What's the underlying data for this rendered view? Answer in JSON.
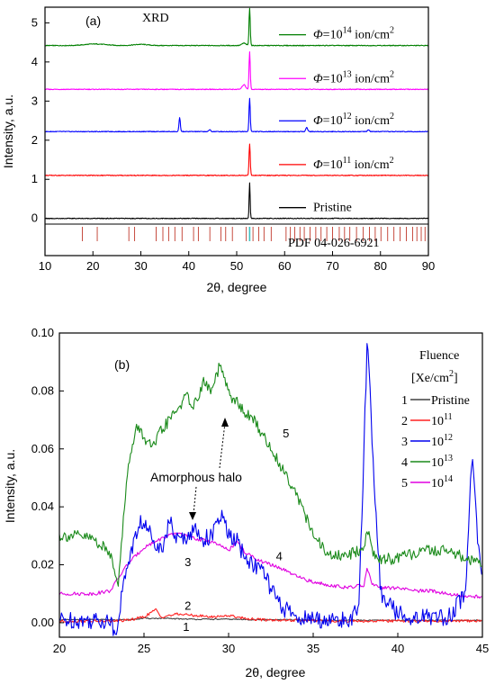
{
  "chart_data": [
    {
      "type": "line",
      "panel_label": "(a)",
      "title": "XRD",
      "xlabel": "2θ, degree",
      "ylabel": "Intensity, a.u.",
      "xlim": [
        10,
        90
      ],
      "ylim": [
        -0.95,
        5.4
      ],
      "xticks": [
        10,
        20,
        30,
        40,
        50,
        60,
        70,
        80,
        90
      ],
      "yticks": [
        0,
        1,
        2,
        3,
        4,
        5
      ],
      "series": [
        {
          "legend_prefix": "Φ=10",
          "legend_exp": "14",
          "legend_suffix": " ion/cm",
          "legend_sq": "2",
          "color": "#007f00",
          "offset": 4.42,
          "peaks": [
            [
              52.7,
              0.95,
              0.18
            ],
            [
              51.5,
              0.06,
              0.6
            ],
            [
              20.5,
              0.04,
              3
            ],
            [
              30,
              0.03,
              2
            ]
          ]
        },
        {
          "legend_prefix": "Φ=10",
          "legend_exp": "13",
          "legend_suffix": " ion/cm",
          "legend_sq": "2",
          "color": "#ff00ff",
          "offset": 3.3,
          "peaks": [
            [
              52.7,
              0.95,
              0.18
            ],
            [
              51.5,
              0.12,
              0.5
            ]
          ]
        },
        {
          "legend_prefix": "Φ=10",
          "legend_exp": "12",
          "legend_suffix": " ion/cm",
          "legend_sq": "2",
          "color": "#0000ff",
          "offset": 2.22,
          "peaks": [
            [
              52.7,
              0.85,
              0.18
            ],
            [
              38.1,
              0.35,
              0.2
            ],
            [
              44.4,
              0.05,
              0.25
            ],
            [
              64.6,
              0.1,
              0.3
            ],
            [
              77.5,
              0.04,
              0.3
            ]
          ]
        },
        {
          "legend_prefix": "Φ=10",
          "legend_exp": "11",
          "legend_suffix": " ion/cm",
          "legend_sq": "2",
          "color": "#ff0000",
          "offset": 1.1,
          "peaks": [
            [
              52.7,
              0.8,
              0.18
            ]
          ]
        },
        {
          "legend_prefix": "Pristine",
          "legend_exp": "",
          "legend_suffix": "",
          "legend_sq": "",
          "color": "#000000",
          "offset": 0.0,
          "peaks": [
            [
              52.7,
              0.9,
              0.15
            ]
          ]
        }
      ],
      "reference": {
        "label": "PDF 04-026-6921",
        "color": "#c0392b",
        "highlight_color": "#40c0c0",
        "highlight_position": 52.7,
        "positions": [
          17.8,
          20.9,
          27.5,
          28.7,
          33.2,
          34.6,
          35.8,
          37.1,
          38.6,
          41.0,
          42.0,
          44.4,
          46.7,
          47.7,
          49.1,
          52.0,
          53.4,
          54.6,
          55.7,
          57.2,
          60.3,
          61.2,
          62.1,
          63.2,
          64.1,
          65.3,
          66.5,
          67.6,
          68.8,
          70.0,
          71.4,
          72.5,
          73.6,
          75.0,
          76.4,
          77.7,
          78.9,
          80.1,
          81.5,
          82.8,
          84.1,
          85.4,
          86.7,
          87.6,
          88.5,
          89.3
        ]
      }
    },
    {
      "type": "line",
      "panel_label": "(b)",
      "xlabel": "2θ, degree",
      "ylabel": "Intensity, a.u.",
      "xlim": [
        20,
        45
      ],
      "ylim": [
        -0.005,
        0.1
      ],
      "xticks": [
        20,
        25,
        30,
        35,
        40,
        45
      ],
      "yticks": [
        "0.00",
        "0.02",
        "0.04",
        "0.06",
        "0.08",
        "0.10"
      ],
      "legend_title_line1": "Fluence",
      "legend_title_line2": "[Xe/cm",
      "legend_title_sq": "2",
      "legend_title_close": "]",
      "series": [
        {
          "index": "1",
          "name": "Pristine",
          "exp": "",
          "color": "#404040",
          "x": [
            20,
            23,
            24,
            25,
            26,
            28,
            30,
            32,
            34,
            36,
            38,
            40,
            42,
            45
          ],
          "y": [
            0.001,
            0.001,
            0.001,
            0.0015,
            0.0015,
            0.0012,
            0.0012,
            0.001,
            0.001,
            0.0008,
            0.0008,
            0.0008,
            0.0008,
            0.0008
          ]
        },
        {
          "index": "2",
          "name": "10",
          "exp": "11",
          "color": "#ff2020",
          "x": [
            20,
            23,
            24,
            25,
            25.7,
            26,
            27,
            28,
            29,
            30,
            31,
            32,
            34,
            36,
            38,
            40,
            42,
            45
          ],
          "y": [
            0.0005,
            0.0005,
            0.0008,
            0.002,
            0.0045,
            0.002,
            0.003,
            0.0025,
            0.002,
            0.0025,
            0.0015,
            0.001,
            0.0008,
            0.0006,
            0.0006,
            0.0006,
            0.0006,
            0.0006
          ]
        },
        {
          "index": "3",
          "name": "10",
          "exp": "12",
          "color": "#0000ee",
          "x": [
            20,
            22,
            23,
            23.3,
            24,
            24.8,
            25.5,
            26,
            26.5,
            27,
            27.5,
            28,
            28.5,
            29,
            29.6,
            30,
            30.5,
            31,
            31.5,
            32,
            32.5,
            33,
            34,
            35,
            36,
            37,
            37.7,
            38.0,
            38.2,
            38.5,
            39,
            40,
            41,
            42,
            43,
            44,
            44.4,
            44.7,
            45
          ],
          "y": [
            0.001,
            0.0008,
            0.0008,
            -0.004,
            0.02,
            0.035,
            0.03,
            0.025,
            0.035,
            0.028,
            0.03,
            0.032,
            0.029,
            0.03,
            0.037,
            0.03,
            0.028,
            0.022,
            0.02,
            0.018,
            0.012,
            0.006,
            0.002,
            0.001,
            0.0008,
            0.0008,
            0.004,
            0.06,
            0.1,
            0.06,
            0.01,
            0.003,
            0.002,
            0.002,
            0.002,
            0.01,
            0.061,
            0.03,
            0.015
          ]
        },
        {
          "index": "4",
          "name": "10",
          "exp": "13",
          "color": "#1a8a1a",
          "x": [
            20,
            21,
            22,
            23,
            23.5,
            24,
            24.6,
            25,
            25.5,
            26,
            27,
            27.5,
            28,
            28.5,
            29,
            29.5,
            30,
            30.5,
            31,
            31.5,
            32,
            33,
            34,
            35,
            36,
            37,
            38,
            38.2,
            38.5,
            39,
            40,
            41,
            42,
            43,
            44,
            45
          ],
          "y": [
            0.03,
            0.03,
            0.029,
            0.024,
            0.014,
            0.052,
            0.068,
            0.064,
            0.06,
            0.066,
            0.074,
            0.078,
            0.075,
            0.083,
            0.08,
            0.089,
            0.079,
            0.076,
            0.072,
            0.07,
            0.065,
            0.055,
            0.045,
            0.03,
            0.023,
            0.023,
            0.026,
            0.033,
            0.024,
            0.022,
            0.022,
            0.024,
            0.025,
            0.025,
            0.022,
            0.02
          ]
        },
        {
          "index": "5",
          "name": "10",
          "exp": "14",
          "color": "#e000e0",
          "x": [
            20,
            22,
            23,
            24,
            25,
            26,
            27,
            28,
            29,
            30,
            30.5,
            31,
            32,
            33,
            34,
            35,
            36,
            37,
            38,
            38.2,
            38.5,
            39,
            40,
            41,
            42,
            43,
            44,
            45
          ],
          "y": [
            0.01,
            0.01,
            0.011,
            0.02,
            0.026,
            0.029,
            0.031,
            0.029,
            0.028,
            0.025,
            0.028,
            0.024,
            0.021,
            0.019,
            0.016,
            0.014,
            0.013,
            0.012,
            0.013,
            0.019,
            0.013,
            0.012,
            0.012,
            0.011,
            0.011,
            0.01,
            0.009,
            0.009
          ]
        }
      ],
      "annotations": {
        "halo_label": "Amorphous halo",
        "curve_labels": [
          {
            "text": "5",
            "x": 33.2,
            "y": 0.064
          },
          {
            "text": "4",
            "x": 32.8,
            "y": 0.0215
          },
          {
            "text": "3",
            "x": 27.4,
            "y": 0.0195
          },
          {
            "text": "2",
            "x": 27.4,
            "y": 0.0045
          },
          {
            "text": "1",
            "x": 27.3,
            "y": -0.0028
          }
        ]
      }
    }
  ]
}
